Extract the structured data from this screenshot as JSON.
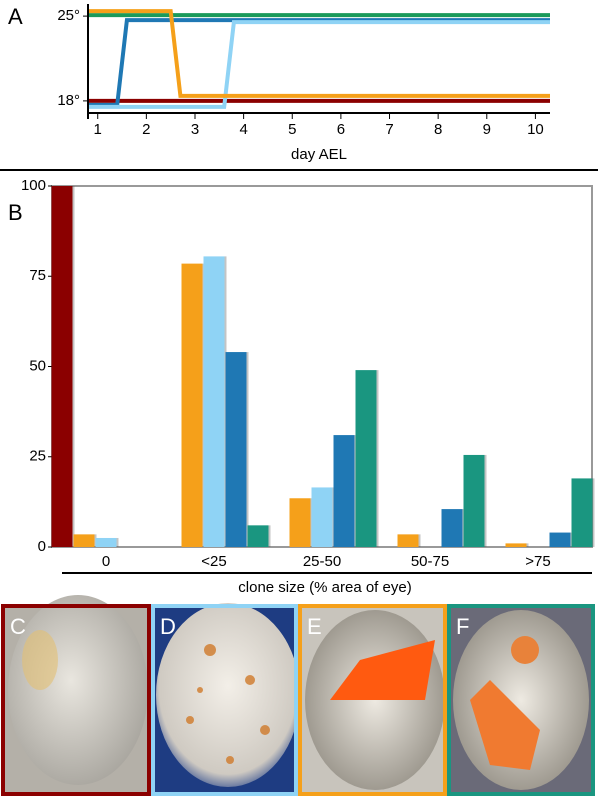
{
  "chart_data": [
    {
      "type": "line",
      "panel_label": "A",
      "xlabel": "day AEL",
      "xlim": [
        0.8,
        10.3
      ],
      "xticks": [
        1,
        2,
        3,
        4,
        5,
        6,
        7,
        8,
        9,
        10
      ],
      "ylim": [
        17,
        26
      ],
      "yticks": [
        {
          "value": 18,
          "label": "18°"
        },
        {
          "value": 25,
          "label": "25°"
        }
      ],
      "series": [
        {
          "color": "#8b0000",
          "x": [
            0.8,
            10.3
          ],
          "values": [
            18,
            18
          ]
        },
        {
          "color": "#1a9a5a",
          "x": [
            0.8,
            10.3
          ],
          "values": [
            25,
            25
          ]
        },
        {
          "color": "#1f78b4",
          "x": [
            0.8,
            1.4,
            1.6,
            10.3
          ],
          "values": [
            18,
            18,
            25,
            25
          ]
        },
        {
          "color": "#8fd3f5",
          "x": [
            0.8,
            3.6,
            3.8,
            10.3
          ],
          "values": [
            18,
            18,
            25,
            25
          ]
        },
        {
          "color": "#f5a01a",
          "x": [
            0.8,
            2.5,
            2.7,
            10.3
          ],
          "values": [
            25,
            25,
            18,
            18
          ]
        }
      ]
    },
    {
      "type": "bar",
      "panel_label": "B",
      "xlabel": "clone size (% area of eye)",
      "categories": [
        "0",
        "<25",
        "25-50",
        "50-75",
        ">75"
      ],
      "ylim": [
        0,
        100
      ],
      "yticks": [
        0,
        25,
        50,
        75,
        100
      ],
      "series": [
        {
          "color": "#8b0000",
          "values": [
            100,
            0,
            0,
            0,
            0
          ]
        },
        {
          "color": "#f5a01a",
          "values": [
            3.5,
            78.5,
            13.5,
            3.5,
            1
          ]
        },
        {
          "color": "#8fd3f5",
          "values": [
            2.5,
            80.5,
            16.5,
            0,
            0
          ]
        },
        {
          "color": "#1f78b4",
          "values": [
            0,
            54,
            31,
            10.5,
            4
          ]
        },
        {
          "color": "#1a9680",
          "values": [
            0,
            6,
            49,
            25.5,
            19
          ]
        }
      ]
    }
  ],
  "panels": [
    {
      "label": "C"
    },
    {
      "label": "D"
    },
    {
      "label": "E"
    },
    {
      "label": "F"
    }
  ]
}
